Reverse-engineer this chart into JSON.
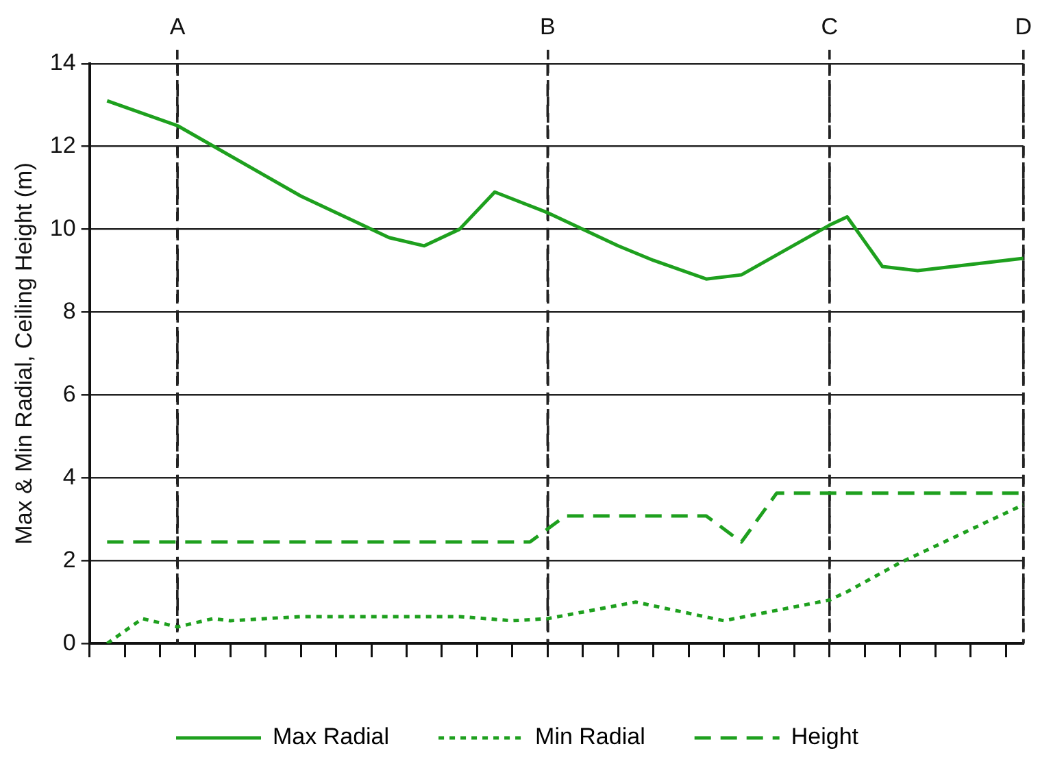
{
  "chart_data": {
    "type": "line",
    "ylabel": "Max & Min Radial, Ceiling Height (m)",
    "categories": [
      null,
      null,
      null,
      null,
      null,
      "A",
      null,
      null,
      null,
      null,
      null,
      null,
      null,
      null,
      null,
      null,
      null,
      null,
      null,
      null,
      null,
      null,
      null,
      null,
      null,
      null,
      "B",
      null,
      null,
      null,
      null,
      null,
      null,
      null,
      null,
      null,
      null,
      null,
      null,
      null,
      null,
      null,
      "C",
      null,
      null,
      null,
      null,
      null,
      null,
      null,
      null,
      null,
      null,
      "D"
    ],
    "ylim": [
      0,
      14
    ],
    "yticks": [
      0,
      2,
      4,
      6,
      8,
      10,
      12,
      14
    ],
    "grid": true,
    "legend": "bottom",
    "marker": "none",
    "series": [
      {
        "name": "Max Radial",
        "color": "#1ea01e",
        "line_style": "solid",
        "values": [
          null,
          13.1,
          null,
          null,
          null,
          12.5,
          null,
          null,
          null,
          null,
          null,
          null,
          10.8,
          null,
          null,
          null,
          null,
          9.8,
          null,
          9.6,
          null,
          10.0,
          null,
          10.9,
          null,
          null,
          10.4,
          null,
          null,
          null,
          9.6,
          null,
          9.25,
          null,
          null,
          8.8,
          null,
          8.9,
          null,
          null,
          null,
          null,
          10.1,
          10.3,
          null,
          9.1,
          null,
          9.0,
          null,
          null,
          null,
          null,
          null,
          9.3
        ]
      },
      {
        "name": "Min Radial",
        "color": "#1ea01e",
        "line_style": "dotted",
        "values": [
          null,
          0,
          null,
          0.6,
          null,
          0.4,
          null,
          0.6,
          0.55,
          null,
          null,
          null,
          0.65,
          null,
          null,
          null,
          null,
          null,
          null,
          null,
          null,
          0.65,
          null,
          null,
          0.55,
          null,
          0.6,
          null,
          null,
          null,
          null,
          1.0,
          null,
          null,
          null,
          null,
          0.55,
          null,
          null,
          null,
          null,
          null,
          1.05,
          1.25,
          null,
          null,
          1.95,
          null,
          null,
          null,
          null,
          null,
          null,
          3.35
        ]
      },
      {
        "name": "Height",
        "color": "#1ea01e",
        "line_style": "dashed",
        "values": [
          null,
          2.45,
          null,
          null,
          null,
          null,
          null,
          null,
          null,
          null,
          null,
          null,
          null,
          null,
          null,
          null,
          null,
          null,
          null,
          null,
          null,
          null,
          null,
          null,
          null,
          2.45,
          null,
          3.08,
          null,
          null,
          null,
          null,
          null,
          null,
          null,
          3.08,
          null,
          2.45,
          null,
          3.63,
          null,
          null,
          null,
          null,
          null,
          null,
          null,
          null,
          null,
          null,
          null,
          null,
          null,
          3.63
        ]
      }
    ]
  }
}
